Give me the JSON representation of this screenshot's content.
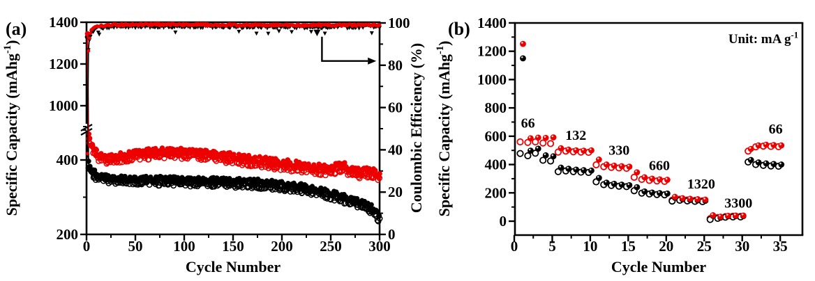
{
  "figure": {
    "background": "#ffffff",
    "panel_a_label": "(a)",
    "panel_b_label": "(b)"
  },
  "colors": {
    "red": "#ed0000",
    "black": "#000000",
    "background": "#ffffff"
  },
  "chart_data": [
    {
      "type": "scatter",
      "panel_label": "(a)",
      "xlabel": "Cycle Number",
      "ylabel_left": "Specific Capacity (mAhg⁻¹)",
      "ylabel_right": "Coulombic Efficiency (%)",
      "xlim": [
        0,
        300
      ],
      "x_major_ticks": [
        0,
        50,
        100,
        150,
        200,
        250,
        300
      ],
      "x_minor_step": 25,
      "y_left_major_ticks": [
        200,
        400,
        1000,
        1200,
        1400
      ],
      "y_left_minor_ticks": [
        300,
        500,
        900,
        1100,
        1300
      ],
      "y_axis_break_between": [
        500,
        900
      ],
      "y_right_lim": [
        0,
        100
      ],
      "y_right_major_ticks": [
        0,
        20,
        40,
        60,
        80,
        100
      ],
      "y_right_minor_ticks": [
        10,
        30,
        50,
        70,
        90
      ],
      "series": [
        {
          "name": "capacity-red",
          "color": "#ed0000",
          "marker": "open-plus-filled-circles",
          "first_cycle_value": 1345,
          "band_halfwidth": 10,
          "anchors": [
            [
              2,
              462
            ],
            [
              4,
              446
            ],
            [
              7,
              428
            ],
            [
              10,
              416
            ],
            [
              15,
              407
            ],
            [
              22,
              403
            ],
            [
              30,
              405
            ],
            [
              45,
              412
            ],
            [
              60,
              417
            ],
            [
              80,
              420
            ],
            [
              100,
              420
            ],
            [
              120,
              416
            ],
            [
              140,
              410
            ],
            [
              158,
              403
            ],
            [
              175,
              398
            ],
            [
              192,
              392
            ],
            [
              208,
              387
            ],
            [
              222,
              382
            ],
            [
              235,
              378
            ],
            [
              245,
              375
            ],
            [
              252,
              378
            ],
            [
              258,
              382
            ],
            [
              264,
              380
            ],
            [
              270,
              373
            ],
            [
              277,
              368
            ],
            [
              284,
              366
            ],
            [
              290,
              370
            ],
            [
              295,
              364
            ],
            [
              300,
              357
            ]
          ]
        },
        {
          "name": "capacity-black",
          "color": "#000000",
          "marker": "open-plus-filled-circles",
          "first_cycle_value": 1330,
          "band_halfwidth": 8,
          "anchors": [
            [
              2,
              388
            ],
            [
              4,
              374
            ],
            [
              8,
              362
            ],
            [
              14,
              354
            ],
            [
              22,
              350
            ],
            [
              35,
              348
            ],
            [
              55,
              347
            ],
            [
              80,
              345
            ],
            [
              105,
              344
            ],
            [
              130,
              342
            ],
            [
              155,
              340
            ],
            [
              175,
              338
            ],
            [
              192,
              334
            ],
            [
              208,
              330
            ],
            [
              222,
              325
            ],
            [
              235,
              318
            ],
            [
              248,
              310
            ],
            [
              260,
              301
            ],
            [
              270,
              293
            ],
            [
              279,
              286
            ],
            [
              287,
              277
            ],
            [
              293,
              267
            ],
            [
              297,
              256
            ],
            [
              300,
              244
            ]
          ]
        },
        {
          "name": "coulombic-efficiency",
          "line_color": "#000000",
          "marker_colors": [
            "#000000",
            "#ed0000"
          ],
          "marker_shapes": [
            "triangle-down",
            "filled-circle"
          ],
          "anchors": [
            [
              1,
              38
            ],
            [
              2,
              87
            ],
            [
              3,
              93
            ],
            [
              5,
              96
            ],
            [
              8,
              97.5
            ],
            [
              12,
              98.2
            ],
            [
              20,
              98.7
            ],
            [
              40,
              98.9
            ],
            [
              80,
              99
            ],
            [
              150,
              98.8
            ],
            [
              220,
              98.7
            ],
            [
              300,
              98.7
            ]
          ]
        }
      ],
      "annotations": {
        "pointer_marker": {
          "shape": "triangle-down",
          "cycle": 236,
          "efficiency": 95.5
        },
        "elbow_arrow": {
          "cycle_from": 241,
          "eff_from": 93.5,
          "eff_corner": 82,
          "cycle_to": 288
        }
      }
    },
    {
      "type": "scatter",
      "panel_label": "(b)",
      "xlabel": "Cycle Number",
      "ylabel": "Specific Capacity (mAhg⁻¹)",
      "unit_note": "Unit: mA g⁻¹",
      "xlim": [
        0,
        38
      ],
      "ylim": [
        -100,
        1400
      ],
      "x_major_ticks": [
        0,
        5,
        10,
        15,
        20,
        25,
        30,
        35
      ],
      "x_minor_step": 2.5,
      "y_major_ticks": [
        0,
        200,
        400,
        600,
        800,
        1000,
        1200,
        1400
      ],
      "y_minor_step": 100,
      "rate_labels": [
        {
          "text": "66",
          "cycle": 1.8,
          "value": 660
        },
        {
          "text": "132",
          "cycle": 8.1,
          "value": 575
        },
        {
          "text": "330",
          "cycle": 13.8,
          "value": 468
        },
        {
          "text": "660",
          "cycle": 19.1,
          "value": 362
        },
        {
          "text": "1320",
          "cycle": 24.6,
          "value": 232
        },
        {
          "text": "3300",
          "cycle": 29.5,
          "value": 97
        },
        {
          "text": "66",
          "cycle": 34.4,
          "value": 618
        }
      ],
      "series": [
        {
          "name": "red-discharge-filled",
          "color": "#ed0000",
          "marker": "filled-circle",
          "values": [
            1252,
            585,
            590,
            588,
            592,
            515,
            505,
            500,
            498,
            500,
            435,
            400,
            392,
            388,
            385,
            345,
            310,
            300,
            295,
            292,
            172,
            162,
            158,
            155,
            152,
            42,
            32,
            38,
            40,
            40,
            510,
            535,
            540,
            538,
            535
          ]
        },
        {
          "name": "red-charge-open",
          "color": "#ed0000",
          "marker": "open-circle",
          "values": [
            560,
            556,
            560,
            552,
            548,
            488,
            495,
            490,
            488,
            486,
            398,
            385,
            380,
            376,
            373,
            310,
            295,
            288,
            284,
            281,
            148,
            155,
            150,
            147,
            144,
            18,
            26,
            32,
            35,
            34,
            495,
            525,
            530,
            528,
            526
          ]
        },
        {
          "name": "black-discharge-filled",
          "color": "#000000",
          "marker": "filled-circle",
          "values": [
            1150,
            498,
            512,
            465,
            458,
            378,
            370,
            364,
            360,
            357,
            305,
            272,
            264,
            258,
            254,
            240,
            210,
            202,
            198,
            195,
            165,
            155,
            150,
            147,
            144,
            38,
            25,
            35,
            36,
            36,
            432,
            415,
            408,
            404,
            400
          ]
        },
        {
          "name": "black-charge-open",
          "color": "#000000",
          "marker": "open-circle",
          "values": [
            478,
            462,
            480,
            430,
            425,
            350,
            355,
            350,
            346,
            344,
            278,
            258,
            252,
            247,
            244,
            215,
            198,
            192,
            188,
            186,
            142,
            148,
            143,
            140,
            138,
            12,
            20,
            28,
            30,
            30,
            418,
            400,
            394,
            390,
            388
          ]
        }
      ]
    }
  ]
}
